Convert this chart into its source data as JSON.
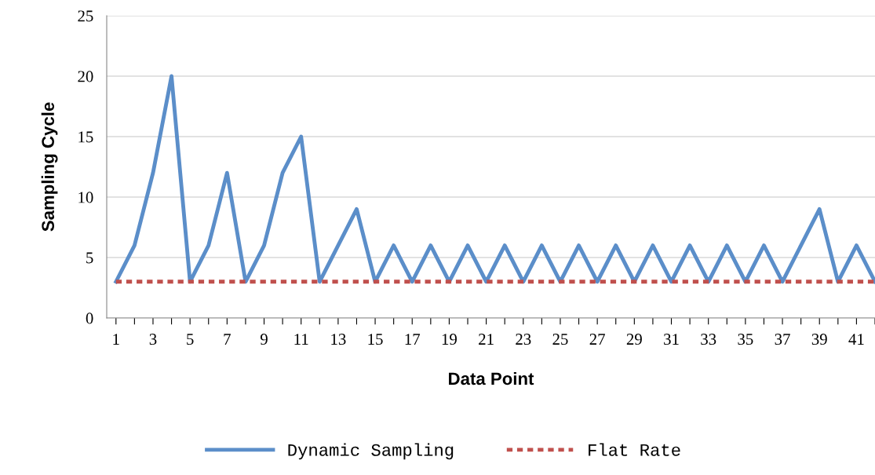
{
  "chart_data": {
    "type": "line",
    "xlabel": "Data Point",
    "ylabel": "Sampling Cycle",
    "categories": [
      "1",
      null,
      "3",
      null,
      "5",
      null,
      "7",
      null,
      "9",
      null,
      "11",
      null,
      "13",
      null,
      "15",
      null,
      "17",
      null,
      "19",
      null,
      "21",
      null,
      "23",
      null,
      "25",
      null,
      "27",
      null,
      "29",
      null,
      "31",
      null,
      "33",
      null,
      "35",
      null,
      "37",
      null,
      "39",
      null,
      "41",
      null
    ],
    "series": [
      {
        "name": "Dynamic Sampling",
        "color": "#5b8ec9",
        "line_style": "solid",
        "values": [
          3,
          6,
          12,
          20,
          3,
          6,
          12,
          3,
          6,
          12,
          15,
          3,
          6,
          9,
          3,
          6,
          3,
          6,
          3,
          6,
          3,
          6,
          3,
          6,
          3,
          6,
          3,
          6,
          3,
          6,
          3,
          6,
          3,
          6,
          3,
          6,
          3,
          6,
          9,
          3,
          6,
          3
        ]
      },
      {
        "name": "Flat Rate",
        "color": "#c0504d",
        "line_style": "dashed",
        "values": [
          3,
          3,
          3,
          3,
          3,
          3,
          3,
          3,
          3,
          3,
          3,
          3,
          3,
          3,
          3,
          3,
          3,
          3,
          3,
          3,
          3,
          3,
          3,
          3,
          3,
          3,
          3,
          3,
          3,
          3,
          3,
          3,
          3,
          3,
          3,
          3,
          3,
          3,
          3,
          3,
          3,
          3
        ]
      }
    ],
    "ylim": [
      0,
      25
    ],
    "yticks": [
      0,
      5,
      10,
      15,
      20,
      25
    ],
    "grid": "y",
    "legend": "bottom",
    "marker": "none"
  }
}
